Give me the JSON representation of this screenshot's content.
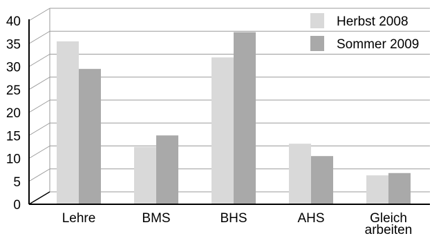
{
  "chart_data": {
    "type": "bar",
    "categories": [
      [
        "Lehre"
      ],
      [
        "BMS"
      ],
      [
        "BHS"
      ],
      [
        "AHS"
      ],
      [
        "Gleich",
        "arbeiten"
      ]
    ],
    "series": [
      {
        "name": "Herbst 2008",
        "color": "#d9d9d9",
        "values": [
          35.5,
          12.5,
          32,
          13.2,
          6.3
        ]
      },
      {
        "name": "Sommer 2009",
        "color": "#a9a9a9",
        "values": [
          29.5,
          15,
          37.5,
          10.5,
          6.8
        ]
      }
    ],
    "y_ticks": [
      "0",
      "5",
      "10",
      "15",
      "20",
      "25",
      "30",
      "35",
      "40"
    ],
    "ylim": [
      0,
      40
    ],
    "grid": true,
    "legend_position": "top-right"
  }
}
